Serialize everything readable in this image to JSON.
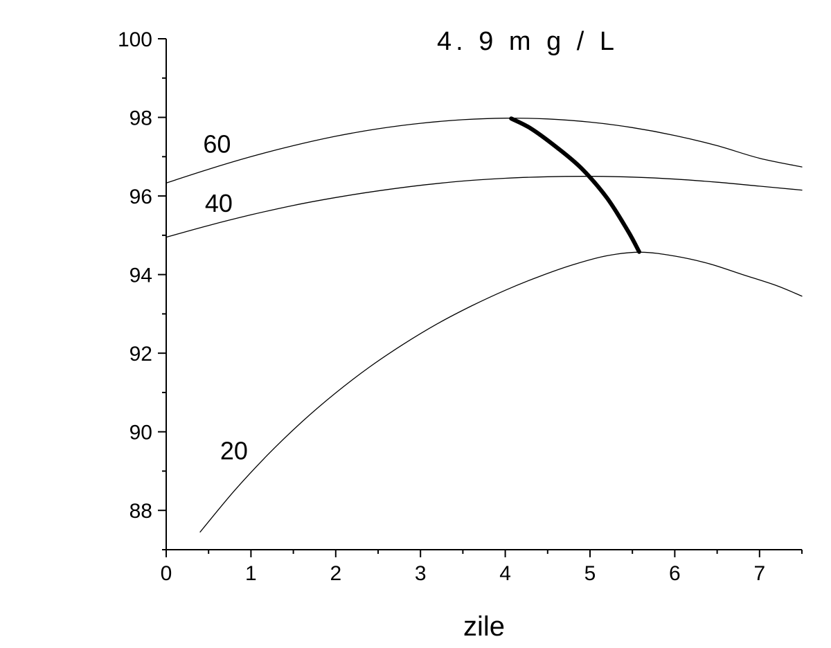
{
  "chart_data": {
    "type": "line",
    "title": "4. 9  m g / L",
    "xlabel": "zile",
    "ylabel": "",
    "xlim": [
      0,
      7.5
    ],
    "ylim": [
      87,
      100
    ],
    "xticks": [
      "0",
      "1",
      "2",
      "3",
      "4",
      "5",
      "6",
      "7"
    ],
    "yticks": [
      "88",
      "90",
      "92",
      "94",
      "96",
      "98",
      "100"
    ],
    "grid": false,
    "series": [
      {
        "name": "60",
        "x": [
          0,
          0.5,
          1,
          1.5,
          2,
          2.5,
          3,
          3.5,
          4,
          4.5,
          5,
          5.5,
          6,
          6.5,
          7,
          7.5
        ],
        "y": [
          96.33,
          96.68,
          97.0,
          97.28,
          97.52,
          97.71,
          97.85,
          97.94,
          97.98,
          97.96,
          97.88,
          97.74,
          97.54,
          97.28,
          96.96,
          96.74
        ]
      },
      {
        "name": "40",
        "x": [
          0,
          0.5,
          1,
          1.5,
          2,
          2.5,
          3,
          3.5,
          4,
          4.5,
          5,
          5.5,
          6,
          6.5,
          7,
          7.5
        ],
        "y": [
          94.95,
          95.25,
          95.52,
          95.76,
          95.96,
          96.13,
          96.27,
          96.38,
          96.45,
          96.49,
          96.5,
          96.48,
          96.43,
          96.35,
          96.25,
          96.15
        ]
      },
      {
        "name": "20",
        "x": [
          0.4,
          0.8,
          1.2,
          1.6,
          2.0,
          2.4,
          2.8,
          3.2,
          3.6,
          4.0,
          4.4,
          4.8,
          5.2,
          5.6,
          6.0,
          6.4,
          6.8,
          7.2,
          7.5
        ],
        "y": [
          87.45,
          88.49,
          89.42,
          90.25,
          90.99,
          91.65,
          92.23,
          92.75,
          93.2,
          93.6,
          93.95,
          94.25,
          94.48,
          94.57,
          94.47,
          94.28,
          94.0,
          93.72,
          93.45
        ]
      },
      {
        "name": "",
        "emphasis": "bold",
        "x": [
          4.07,
          4.3,
          4.6,
          4.9,
          5.2,
          5.45,
          5.58
        ],
        "y": [
          97.97,
          97.72,
          97.25,
          96.7,
          95.95,
          95.1,
          94.58
        ]
      }
    ]
  }
}
